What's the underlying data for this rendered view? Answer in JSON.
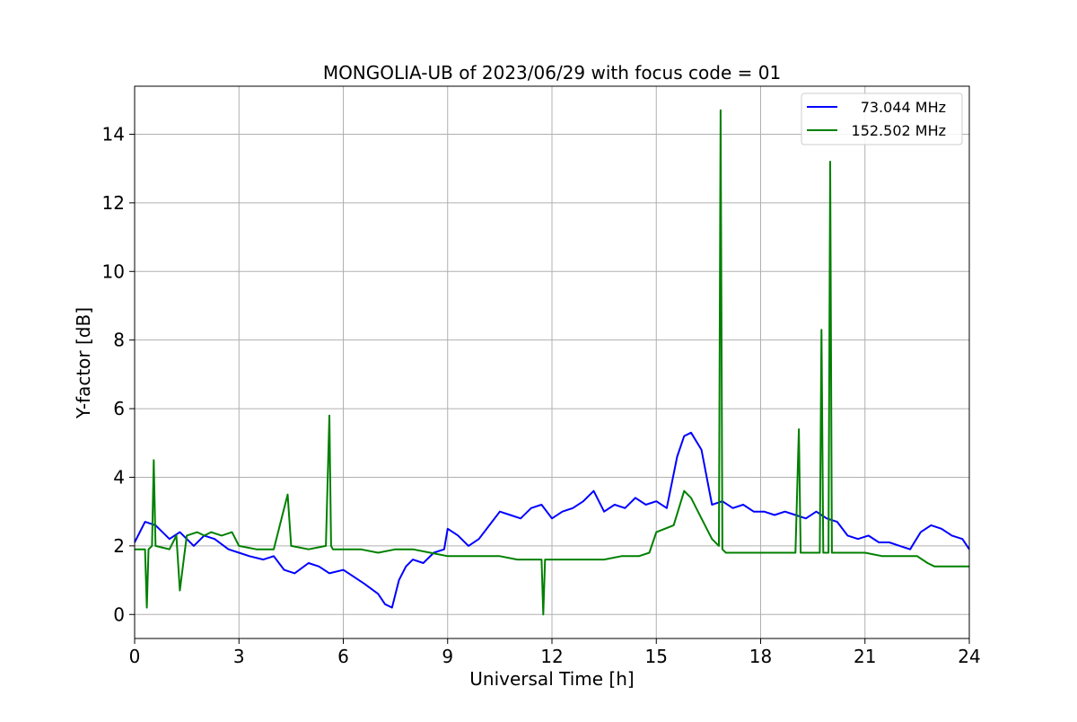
{
  "chart_data": {
    "type": "line",
    "title": "MONGOLIA-UB of 2023/06/29 with focus code = 01",
    "xlabel": "Universal Time [h]",
    "ylabel": "Y-factor [dB]",
    "xlim": [
      0,
      24
    ],
    "ylim": [
      -0.7,
      15.4
    ],
    "xticks": [
      0,
      3,
      6,
      9,
      12,
      15,
      18,
      21,
      24
    ],
    "yticks": [
      0,
      2,
      4,
      6,
      8,
      10,
      12,
      14
    ],
    "grid": true,
    "legend_position": "top-right",
    "series": [
      {
        "name": "73.044 MHz",
        "color": "#0000ff",
        "x": [
          0,
          0.3,
          0.6,
          1.0,
          1.3,
          1.7,
          2.0,
          2.3,
          2.7,
          3.0,
          3.3,
          3.7,
          4.0,
          4.3,
          4.6,
          5.0,
          5.3,
          5.6,
          6.0,
          6.3,
          6.6,
          7.0,
          7.2,
          7.4,
          7.6,
          7.8,
          8.0,
          8.3,
          8.6,
          8.9,
          9.0,
          9.3,
          9.6,
          9.9,
          10.2,
          10.5,
          10.8,
          11.1,
          11.4,
          11.7,
          12.0,
          12.3,
          12.6,
          12.9,
          13.2,
          13.5,
          13.8,
          14.1,
          14.4,
          14.7,
          15.0,
          15.3,
          15.6,
          15.8,
          16.0,
          16.3,
          16.6,
          16.9,
          17.2,
          17.5,
          17.8,
          18.1,
          18.4,
          18.7,
          19.0,
          19.3,
          19.6,
          19.9,
          20.2,
          20.5,
          20.8,
          21.1,
          21.4,
          21.7,
          22.0,
          22.3,
          22.6,
          22.9,
          23.2,
          23.5,
          23.8,
          24.0
        ],
        "y": [
          2.1,
          2.7,
          2.6,
          2.2,
          2.4,
          2.0,
          2.3,
          2.2,
          1.9,
          1.8,
          1.7,
          1.6,
          1.7,
          1.3,
          1.2,
          1.5,
          1.4,
          1.2,
          1.3,
          1.1,
          0.9,
          0.6,
          0.3,
          0.2,
          1.0,
          1.4,
          1.6,
          1.5,
          1.8,
          1.9,
          2.5,
          2.3,
          2.0,
          2.2,
          2.6,
          3.0,
          2.9,
          2.8,
          3.1,
          3.2,
          2.8,
          3.0,
          3.1,
          3.3,
          3.6,
          3.0,
          3.2,
          3.1,
          3.4,
          3.2,
          3.3,
          3.1,
          4.6,
          5.2,
          5.3,
          4.8,
          3.2,
          3.3,
          3.1,
          3.2,
          3.0,
          3.0,
          2.9,
          3.0,
          2.9,
          2.8,
          3.0,
          2.8,
          2.7,
          2.3,
          2.2,
          2.3,
          2.1,
          2.1,
          2.0,
          1.9,
          2.4,
          2.6,
          2.5,
          2.3,
          2.2,
          1.9
        ]
      },
      {
        "name": "152.502 MHz",
        "color": "#008000",
        "x": [
          0,
          0.3,
          0.35,
          0.4,
          0.5,
          0.55,
          0.6,
          1.0,
          1.2,
          1.3,
          1.5,
          1.8,
          2.0,
          2.2,
          2.5,
          2.8,
          3.0,
          3.5,
          4.0,
          4.4,
          4.5,
          5.0,
          5.5,
          5.6,
          5.65,
          5.7,
          6.0,
          6.5,
          7.0,
          7.5,
          8.0,
          8.5,
          9.0,
          9.5,
          10.0,
          10.5,
          11.0,
          11.5,
          11.7,
          11.75,
          11.8,
          12.0,
          12.5,
          13.0,
          13.5,
          14.0,
          14.5,
          14.8,
          15.0,
          15.5,
          15.8,
          16.0,
          16.3,
          16.6,
          16.8,
          16.85,
          16.9,
          17.0,
          17.5,
          18.0,
          18.5,
          19.0,
          19.1,
          19.15,
          19.2,
          19.5,
          19.7,
          19.75,
          19.8,
          19.95,
          20.0,
          20.05,
          20.3,
          20.5,
          21.0,
          21.5,
          22.0,
          22.5,
          22.8,
          23.0,
          23.5,
          24.0
        ],
        "y": [
          1.9,
          1.9,
          0.2,
          1.9,
          2.0,
          4.5,
          2.0,
          1.9,
          2.3,
          0.7,
          2.3,
          2.4,
          2.3,
          2.4,
          2.3,
          2.4,
          2.0,
          1.9,
          1.9,
          3.5,
          2.0,
          1.9,
          2.0,
          5.8,
          2.0,
          1.9,
          1.9,
          1.9,
          1.8,
          1.9,
          1.9,
          1.8,
          1.7,
          1.7,
          1.7,
          1.7,
          1.6,
          1.6,
          1.6,
          0.0,
          1.6,
          1.6,
          1.6,
          1.6,
          1.6,
          1.7,
          1.7,
          1.8,
          2.4,
          2.6,
          3.6,
          3.4,
          2.8,
          2.2,
          2.0,
          14.7,
          1.9,
          1.8,
          1.8,
          1.8,
          1.8,
          1.8,
          5.4,
          1.8,
          1.8,
          1.8,
          1.8,
          8.3,
          1.8,
          1.8,
          13.2,
          1.8,
          1.8,
          1.8,
          1.8,
          1.7,
          1.7,
          1.7,
          1.5,
          1.4,
          1.4,
          1.4
        ]
      }
    ]
  }
}
